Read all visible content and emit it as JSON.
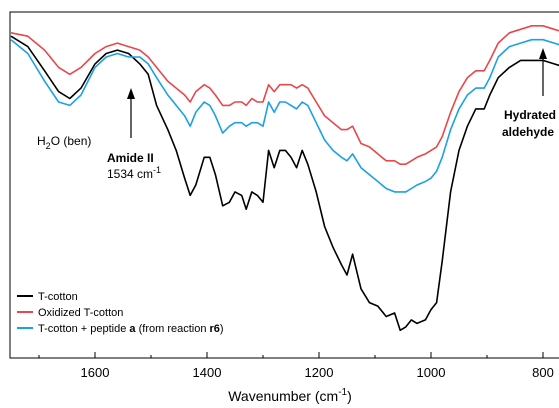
{
  "chart_data": {
    "type": "line",
    "title": "",
    "xlabel": "Wavenumber (cm",
    "xlabel_sup": "-1",
    "xlabel_tail": ")",
    "ylabel": "",
    "x_reversed": true,
    "xlim": [
      1750,
      760
    ],
    "ylim": [
      0,
      100
    ],
    "xticks": [
      1600,
      1400,
      1200,
      1000,
      800
    ],
    "xtick_labels": [
      "1600",
      "1400",
      "1200",
      "1000",
      "800"
    ],
    "grid": false,
    "legend_position": "bottom-left",
    "series": [
      {
        "name": "T-cotton",
        "color": "#000000",
        "points": [
          [
            1750,
            93
          ],
          [
            1720,
            90
          ],
          [
            1690,
            83
          ],
          [
            1665,
            77
          ],
          [
            1645,
            75
          ],
          [
            1625,
            78
          ],
          [
            1600,
            85
          ],
          [
            1580,
            88
          ],
          [
            1560,
            89
          ],
          [
            1540,
            88
          ],
          [
            1520,
            85
          ],
          [
            1505,
            82
          ],
          [
            1490,
            73
          ],
          [
            1470,
            66
          ],
          [
            1455,
            60
          ],
          [
            1440,
            52
          ],
          [
            1430,
            47
          ],
          [
            1420,
            50
          ],
          [
            1405,
            58
          ],
          [
            1395,
            58
          ],
          [
            1385,
            53
          ],
          [
            1372,
            44
          ],
          [
            1360,
            45
          ],
          [
            1350,
            48
          ],
          [
            1338,
            47
          ],
          [
            1330,
            43
          ],
          [
            1320,
            48
          ],
          [
            1310,
            47
          ],
          [
            1300,
            45
          ],
          [
            1290,
            60
          ],
          [
            1280,
            55
          ],
          [
            1270,
            60
          ],
          [
            1260,
            60
          ],
          [
            1250,
            58
          ],
          [
            1240,
            55
          ],
          [
            1230,
            60
          ],
          [
            1220,
            56
          ],
          [
            1205,
            48
          ],
          [
            1190,
            38
          ],
          [
            1175,
            32
          ],
          [
            1160,
            27
          ],
          [
            1150,
            24
          ],
          [
            1140,
            30
          ],
          [
            1125,
            20
          ],
          [
            1110,
            16
          ],
          [
            1095,
            15
          ],
          [
            1080,
            12
          ],
          [
            1065,
            13
          ],
          [
            1055,
            8
          ],
          [
            1045,
            9
          ],
          [
            1035,
            11
          ],
          [
            1025,
            10
          ],
          [
            1010,
            11
          ],
          [
            1000,
            14
          ],
          [
            990,
            16
          ],
          [
            980,
            28
          ],
          [
            965,
            48
          ],
          [
            950,
            60
          ],
          [
            935,
            67
          ],
          [
            920,
            72
          ],
          [
            905,
            72
          ],
          [
            895,
            76
          ],
          [
            880,
            81
          ],
          [
            860,
            84
          ],
          [
            840,
            86
          ],
          [
            820,
            86
          ],
          [
            800,
            86
          ],
          [
            780,
            85
          ],
          [
            760,
            84
          ]
        ]
      },
      {
        "name": "Oxidized T-cotton",
        "color": "#e8474c",
        "points": [
          [
            1750,
            94
          ],
          [
            1720,
            93
          ],
          [
            1690,
            89
          ],
          [
            1665,
            84
          ],
          [
            1645,
            82
          ],
          [
            1625,
            84
          ],
          [
            1600,
            88
          ],
          [
            1580,
            90
          ],
          [
            1560,
            91
          ],
          [
            1540,
            90
          ],
          [
            1520,
            89
          ],
          [
            1505,
            87
          ],
          [
            1490,
            84
          ],
          [
            1470,
            80
          ],
          [
            1455,
            78
          ],
          [
            1440,
            76
          ],
          [
            1430,
            74
          ],
          [
            1420,
            77
          ],
          [
            1405,
            79
          ],
          [
            1395,
            78
          ],
          [
            1385,
            76
          ],
          [
            1372,
            73
          ],
          [
            1360,
            73
          ],
          [
            1350,
            74
          ],
          [
            1338,
            74
          ],
          [
            1330,
            73
          ],
          [
            1320,
            75
          ],
          [
            1310,
            74
          ],
          [
            1300,
            74
          ],
          [
            1290,
            79
          ],
          [
            1280,
            77
          ],
          [
            1270,
            79
          ],
          [
            1260,
            79
          ],
          [
            1250,
            79
          ],
          [
            1240,
            78
          ],
          [
            1230,
            79
          ],
          [
            1220,
            78
          ],
          [
            1205,
            74
          ],
          [
            1190,
            70
          ],
          [
            1175,
            68
          ],
          [
            1160,
            66
          ],
          [
            1150,
            66
          ],
          [
            1140,
            67
          ],
          [
            1125,
            62
          ],
          [
            1110,
            61
          ],
          [
            1095,
            59
          ],
          [
            1080,
            57
          ],
          [
            1065,
            57
          ],
          [
            1055,
            56
          ],
          [
            1045,
            56
          ],
          [
            1035,
            57
          ],
          [
            1025,
            58
          ],
          [
            1010,
            59
          ],
          [
            1000,
            60
          ],
          [
            990,
            61
          ],
          [
            980,
            64
          ],
          [
            965,
            71
          ],
          [
            950,
            77
          ],
          [
            935,
            81
          ],
          [
            920,
            83
          ],
          [
            905,
            83
          ],
          [
            895,
            86
          ],
          [
            880,
            91
          ],
          [
            860,
            94
          ],
          [
            840,
            95
          ],
          [
            820,
            96
          ],
          [
            800,
            96
          ],
          [
            780,
            95
          ],
          [
            760,
            94
          ]
        ]
      },
      {
        "name": "T-cotton + peptide a (from reaction r6)",
        "color": "#1aa1e6",
        "points": [
          [
            1750,
            92
          ],
          [
            1720,
            88
          ],
          [
            1690,
            80
          ],
          [
            1665,
            74
          ],
          [
            1645,
            73
          ],
          [
            1625,
            76
          ],
          [
            1600,
            84
          ],
          [
            1580,
            87
          ],
          [
            1560,
            88
          ],
          [
            1540,
            87
          ],
          [
            1520,
            87
          ],
          [
            1505,
            85
          ],
          [
            1490,
            81
          ],
          [
            1470,
            76
          ],
          [
            1455,
            73
          ],
          [
            1440,
            70
          ],
          [
            1430,
            67
          ],
          [
            1420,
            71
          ],
          [
            1405,
            74
          ],
          [
            1395,
            73
          ],
          [
            1385,
            70
          ],
          [
            1372,
            65
          ],
          [
            1360,
            67
          ],
          [
            1350,
            68
          ],
          [
            1338,
            68
          ],
          [
            1330,
            67
          ],
          [
            1320,
            68
          ],
          [
            1310,
            68
          ],
          [
            1300,
            67
          ],
          [
            1290,
            74
          ],
          [
            1280,
            71
          ],
          [
            1270,
            74
          ],
          [
            1260,
            74
          ],
          [
            1250,
            73
          ],
          [
            1240,
            72
          ],
          [
            1230,
            74
          ],
          [
            1220,
            73
          ],
          [
            1205,
            68
          ],
          [
            1190,
            63
          ],
          [
            1175,
            60
          ],
          [
            1160,
            58
          ],
          [
            1150,
            57
          ],
          [
            1140,
            59
          ],
          [
            1125,
            55
          ],
          [
            1110,
            53
          ],
          [
            1095,
            51
          ],
          [
            1080,
            49
          ],
          [
            1065,
            48
          ],
          [
            1055,
            48
          ],
          [
            1045,
            48
          ],
          [
            1035,
            49
          ],
          [
            1025,
            50
          ],
          [
            1010,
            51
          ],
          [
            1000,
            52
          ],
          [
            990,
            54
          ],
          [
            980,
            58
          ],
          [
            965,
            66
          ],
          [
            950,
            72
          ],
          [
            935,
            76
          ],
          [
            920,
            78
          ],
          [
            905,
            78
          ],
          [
            895,
            81
          ],
          [
            880,
            87
          ],
          [
            860,
            90
          ],
          [
            840,
            91
          ],
          [
            820,
            92
          ],
          [
            800,
            92
          ],
          [
            780,
            91
          ],
          [
            760,
            90
          ]
        ]
      }
    ],
    "legend": [
      {
        "series": 0,
        "parts": [
          {
            "t": "T-cotton",
            "b": false
          }
        ]
      },
      {
        "series": 1,
        "parts": [
          {
            "t": "Oxidized T-cotton",
            "b": false
          }
        ]
      },
      {
        "series": 2,
        "parts": [
          {
            "t": "T-cotton + peptide ",
            "b": false
          },
          {
            "t": "a",
            "b": true
          },
          {
            "t": " (from reaction ",
            "b": false
          },
          {
            "t": "r6",
            "b": true
          },
          {
            "t": ")",
            "b": false
          }
        ]
      }
    ],
    "annotations": {
      "h2o": {
        "pre": "H",
        "sub": "2",
        "post": "O (ben)"
      },
      "amide": {
        "line1": "Amide II",
        "line2_pre": "1534 cm",
        "line2_sup": "-1"
      },
      "hydrated": {
        "line1": "Hydrated",
        "line2": "aldehyde"
      }
    }
  }
}
